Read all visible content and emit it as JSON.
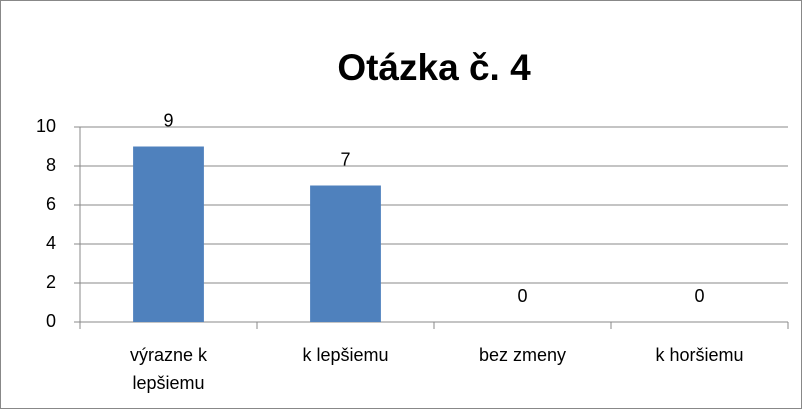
{
  "chart_data": {
    "type": "bar",
    "title": "Otázka č. 4",
    "categories": [
      "výrazne k lepšiemu",
      "k lepšiemu",
      "bez zmeny",
      "k horšiemu"
    ],
    "values": [
      9,
      7,
      0,
      0
    ],
    "color": "#4f81bd",
    "ylim": [
      0,
      10
    ],
    "yticks": [
      0,
      2,
      4,
      6,
      8,
      10
    ],
    "grid": true
  }
}
